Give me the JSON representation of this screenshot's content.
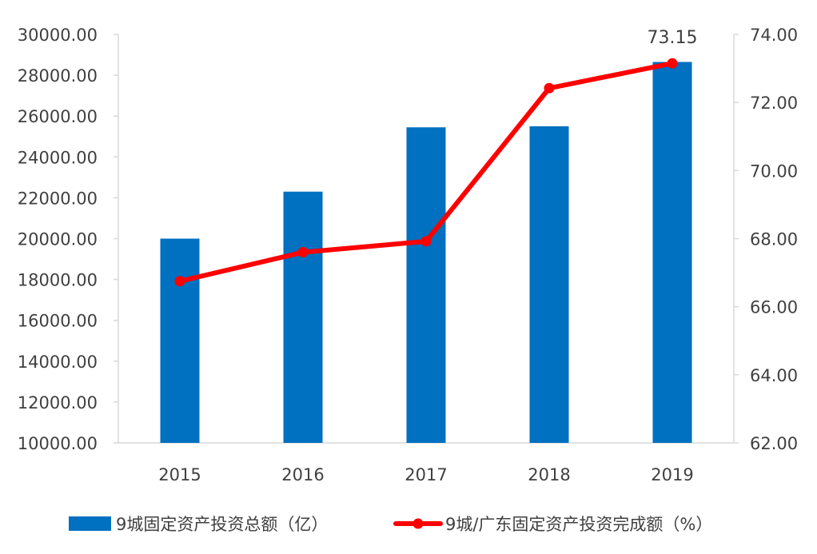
{
  "chart_data": {
    "type": "bar",
    "categories": [
      "2015",
      "2016",
      "2017",
      "2018",
      "2019"
    ],
    "series": [
      {
        "name": "9城固定资产投资总额（亿）",
        "type": "bar",
        "axis": "left",
        "values": [
          20000,
          22300,
          25450,
          25500,
          28650
        ],
        "color": "#0070c0"
      },
      {
        "name": "9城/广东固定资产投资完成额（%）",
        "type": "line",
        "axis": "right",
        "values": [
          66.75,
          67.6,
          67.92,
          72.42,
          73.15
        ],
        "color": "#ff0000"
      }
    ],
    "y_left": {
      "min": 10000,
      "max": 30000,
      "ticks": [
        "10000.00",
        "12000.00",
        "14000.00",
        "16000.00",
        "18000.00",
        "20000.00",
        "22000.00",
        "24000.00",
        "26000.00",
        "28000.00",
        "30000.00"
      ]
    },
    "y_right": {
      "min": 62,
      "max": 74,
      "ticks": [
        "62.00",
        "64.00",
        "66.00",
        "68.00",
        "70.00",
        "72.00",
        "74.00"
      ]
    },
    "annotations": [
      {
        "series": 1,
        "index": 4,
        "text": "73.15"
      }
    ],
    "legend_position": "bottom",
    "grid": false
  }
}
